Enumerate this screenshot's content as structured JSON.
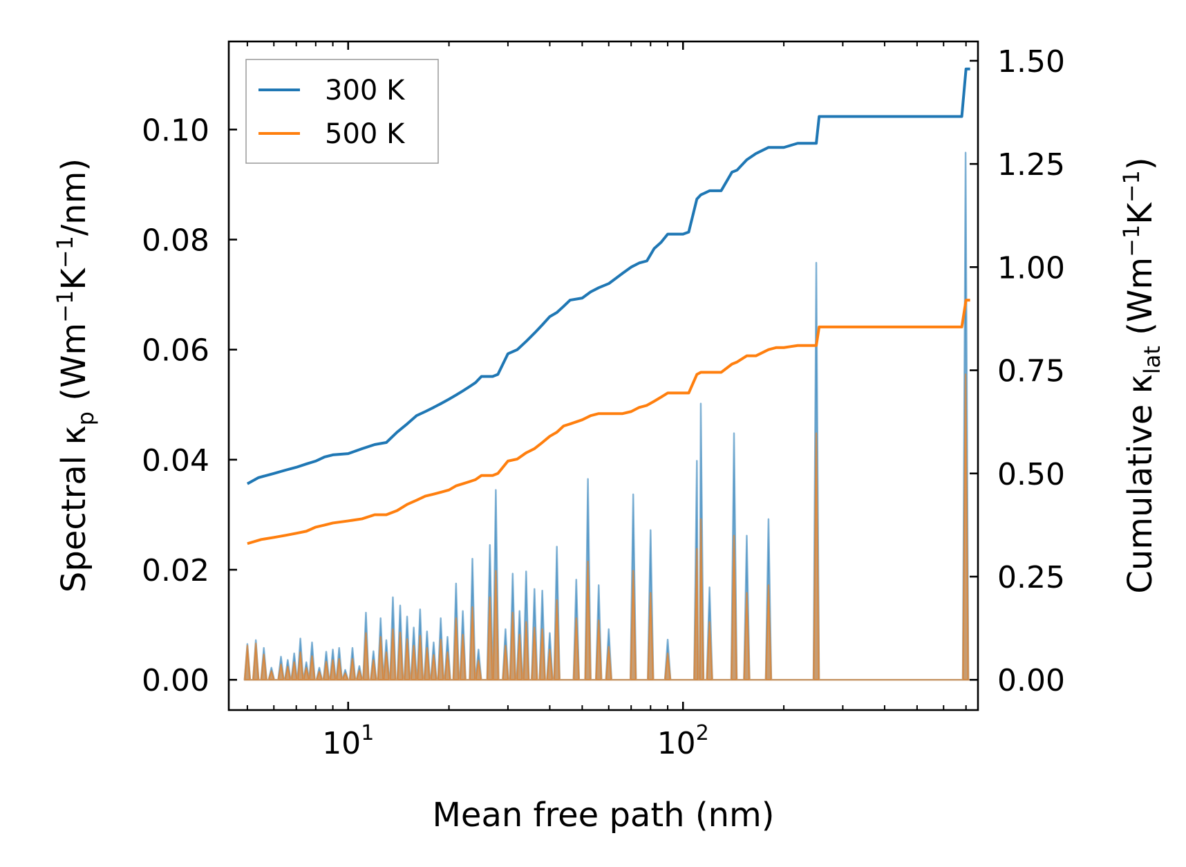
{
  "chart_data": {
    "type": "line",
    "xscale": "log",
    "xlim": [
      4.4,
      760
    ],
    "xlabel": "Mean free path (nm)",
    "x_ticks": [
      {
        "value": 10,
        "base": "10",
        "exp": "1"
      },
      {
        "value": 100,
        "base": "10",
        "exp": "2"
      }
    ],
    "left_axis": {
      "label_parts": [
        "Spectral κ",
        "p",
        " (Wm",
        "−1",
        "K",
        "−1",
        "/nm)"
      ],
      "ylim": [
        -0.0055,
        0.116
      ],
      "ticks": [
        0,
        0.02,
        0.04,
        0.06,
        0.08,
        0.1
      ],
      "tick_labels": [
        "0.00",
        "0.02",
        "0.04",
        "0.06",
        "0.08",
        "0.10"
      ]
    },
    "right_axis": {
      "label_parts": [
        "Cumulative κ",
        "lat",
        " (Wm",
        "−1",
        "K",
        "−1",
        ")"
      ],
      "ylim": [
        -0.0733,
        1.5467
      ],
      "ticks": [
        0,
        0.25,
        0.5,
        0.75,
        1.0,
        1.25,
        1.5
      ],
      "tick_labels": [
        "0.00",
        "0.25",
        "0.50",
        "0.75",
        "1.00",
        "1.25",
        "1.50"
      ]
    },
    "legend": {
      "placement": "top-left",
      "entries": [
        {
          "label": "300 K",
          "color": "#1f77b4"
        },
        {
          "label": "500 K",
          "color": "#ff7f0e"
        }
      ]
    },
    "cumulative": [
      {
        "name": "300 K",
        "color": "#1f77b4",
        "axis": "right",
        "x": [
          5.0,
          5.4,
          6.0,
          6.5,
          7.0,
          7.5,
          8.0,
          8.5,
          9.0,
          10,
          11,
          12,
          13,
          14,
          15,
          16,
          17,
          18,
          19,
          20,
          21,
          22,
          23,
          24,
          25,
          27,
          28,
          30,
          32,
          34,
          36,
          38,
          40,
          42,
          44,
          46,
          50,
          53,
          56,
          60,
          66,
          70,
          74,
          78,
          82,
          86,
          90,
          100,
          104,
          110,
          113,
          120,
          130,
          140,
          145,
          155,
          165,
          180,
          190,
          200,
          220,
          240,
          250,
          255,
          260,
          300,
          400,
          500,
          600,
          680,
          700,
          715,
          720
        ],
        "y": [
          0.475,
          0.49,
          0.5,
          0.508,
          0.515,
          0.523,
          0.53,
          0.54,
          0.545,
          0.548,
          0.56,
          0.57,
          0.575,
          0.6,
          0.62,
          0.64,
          0.65,
          0.66,
          0.67,
          0.68,
          0.69,
          0.7,
          0.71,
          0.72,
          0.735,
          0.735,
          0.74,
          0.79,
          0.8,
          0.82,
          0.84,
          0.86,
          0.88,
          0.89,
          0.905,
          0.92,
          0.925,
          0.94,
          0.95,
          0.96,
          0.985,
          1.0,
          1.01,
          1.015,
          1.045,
          1.06,
          1.08,
          1.08,
          1.085,
          1.165,
          1.175,
          1.185,
          1.185,
          1.23,
          1.235,
          1.26,
          1.275,
          1.29,
          1.29,
          1.29,
          1.3,
          1.3,
          1.3,
          1.365,
          1.365,
          1.365,
          1.365,
          1.365,
          1.365,
          1.365,
          1.48,
          1.48,
          1.48
        ]
      },
      {
        "name": "500 K",
        "color": "#ff7f0e",
        "axis": "right",
        "x": [
          5.0,
          5.5,
          6.0,
          6.5,
          7.0,
          7.5,
          8.0,
          8.5,
          9.0,
          10,
          11,
          12,
          13,
          14,
          15,
          16,
          17,
          18,
          19,
          20,
          21,
          22,
          23,
          24,
          25,
          27,
          28,
          30,
          32,
          34,
          36,
          38,
          40,
          42,
          44,
          46,
          50,
          53,
          56,
          60,
          66,
          70,
          74,
          78,
          82,
          86,
          90,
          100,
          104,
          110,
          113,
          120,
          130,
          140,
          145,
          155,
          165,
          180,
          190,
          200,
          220,
          240,
          250,
          255,
          260,
          300,
          400,
          500,
          600,
          680,
          700,
          715,
          720
        ],
        "y": [
          0.33,
          0.34,
          0.345,
          0.35,
          0.355,
          0.36,
          0.37,
          0.375,
          0.38,
          0.385,
          0.39,
          0.4,
          0.4,
          0.41,
          0.425,
          0.435,
          0.445,
          0.45,
          0.455,
          0.46,
          0.47,
          0.475,
          0.48,
          0.485,
          0.495,
          0.495,
          0.5,
          0.53,
          0.535,
          0.55,
          0.56,
          0.575,
          0.59,
          0.6,
          0.615,
          0.62,
          0.63,
          0.64,
          0.645,
          0.645,
          0.645,
          0.65,
          0.66,
          0.665,
          0.675,
          0.685,
          0.695,
          0.695,
          0.695,
          0.74,
          0.745,
          0.745,
          0.745,
          0.765,
          0.77,
          0.785,
          0.785,
          0.8,
          0.805,
          0.805,
          0.81,
          0.81,
          0.81,
          0.855,
          0.855,
          0.855,
          0.855,
          0.855,
          0.855,
          0.855,
          0.92,
          0.92,
          0.92
        ]
      }
    ],
    "spectral": [
      {
        "name": "300 K",
        "color": "#1f77b4",
        "axis": "left",
        "fill_opacity": 0.5,
        "peaks": [
          [
            5.0,
            0.0065
          ],
          [
            5.3,
            0.0072
          ],
          [
            5.6,
            0.0058
          ],
          [
            5.9,
            0.0022
          ],
          [
            6.3,
            0.0042
          ],
          [
            6.6,
            0.0036
          ],
          [
            6.9,
            0.0048
          ],
          [
            7.2,
            0.0075
          ],
          [
            7.5,
            0.0032
          ],
          [
            7.8,
            0.0068
          ],
          [
            8.2,
            0.0022
          ],
          [
            8.6,
            0.0051
          ],
          [
            9.0,
            0.0055
          ],
          [
            9.4,
            0.0058
          ],
          [
            9.8,
            0.0018
          ],
          [
            10.3,
            0.0058
          ],
          [
            10.8,
            0.0025
          ],
          [
            11.3,
            0.0122
          ],
          [
            11.9,
            0.0052
          ],
          [
            12.5,
            0.0112
          ],
          [
            13.0,
            0.0072
          ],
          [
            13.6,
            0.015
          ],
          [
            14.3,
            0.0135
          ],
          [
            15.0,
            0.0115
          ],
          [
            15.7,
            0.0095
          ],
          [
            16.4,
            0.0128
          ],
          [
            17.2,
            0.0088
          ],
          [
            18.0,
            0.0068
          ],
          [
            18.9,
            0.0112
          ],
          [
            19.8,
            0.0078
          ],
          [
            21.0,
            0.0175
          ],
          [
            22.0,
            0.0125
          ],
          [
            23.5,
            0.022
          ],
          [
            24.5,
            0.0055
          ],
          [
            26.5,
            0.0245
          ],
          [
            27.6,
            0.0345
          ],
          [
            29.5,
            0.0092
          ],
          [
            31.0,
            0.0193
          ],
          [
            32.5,
            0.0125
          ],
          [
            34.0,
            0.0197
          ],
          [
            36.0,
            0.0165
          ],
          [
            38.0,
            0.0162
          ],
          [
            40.0,
            0.0085
          ],
          [
            42.0,
            0.0242
          ],
          [
            48.0,
            0.0182
          ],
          [
            52.0,
            0.0365
          ],
          [
            56.0,
            0.0172
          ],
          [
            60.0,
            0.0092
          ],
          [
            71.0,
            0.0337
          ],
          [
            80.0,
            0.0272
          ],
          [
            90.0,
            0.0073
          ],
          [
            110.0,
            0.0398
          ],
          [
            113.0,
            0.0502
          ],
          [
            120.0,
            0.0168
          ],
          [
            142.0,
            0.0448
          ],
          [
            155.0,
            0.0262
          ],
          [
            180.0,
            0.0292
          ],
          [
            250.0,
            0.0758
          ],
          [
            698.0,
            0.0958
          ]
        ]
      },
      {
        "name": "500 K",
        "color": "#ff7f0e",
        "axis": "left",
        "fill_opacity": 0.5,
        "peaks": [
          [
            5.0,
            0.0062
          ],
          [
            5.3,
            0.0066
          ],
          [
            5.6,
            0.0046
          ],
          [
            5.9,
            0.0016
          ],
          [
            6.3,
            0.0028
          ],
          [
            6.6,
            0.0024
          ],
          [
            6.9,
            0.0032
          ],
          [
            7.2,
            0.005
          ],
          [
            7.5,
            0.0022
          ],
          [
            7.8,
            0.0043
          ],
          [
            8.2,
            0.0015
          ],
          [
            8.6,
            0.0033
          ],
          [
            9.0,
            0.0036
          ],
          [
            9.4,
            0.0038
          ],
          [
            9.8,
            0.0012
          ],
          [
            10.3,
            0.0038
          ],
          [
            10.8,
            0.0017
          ],
          [
            11.3,
            0.0085
          ],
          [
            11.9,
            0.0036
          ],
          [
            12.5,
            0.0078
          ],
          [
            13.0,
            0.005
          ],
          [
            13.6,
            0.0092
          ],
          [
            14.3,
            0.0086
          ],
          [
            15.0,
            0.0074
          ],
          [
            15.7,
            0.0062
          ],
          [
            16.4,
            0.008
          ],
          [
            17.2,
            0.0058
          ],
          [
            18.0,
            0.0045
          ],
          [
            18.9,
            0.0073
          ],
          [
            19.8,
            0.005
          ],
          [
            21.0,
            0.0112
          ],
          [
            22.0,
            0.0082
          ],
          [
            23.5,
            0.0132
          ],
          [
            24.5,
            0.0035
          ],
          [
            26.5,
            0.015
          ],
          [
            27.6,
            0.0198
          ],
          [
            29.5,
            0.0062
          ],
          [
            31.0,
            0.0122
          ],
          [
            32.5,
            0.0082
          ],
          [
            34.0,
            0.0105
          ],
          [
            36.0,
            0.0095
          ],
          [
            38.0,
            0.0092
          ],
          [
            40.0,
            0.0055
          ],
          [
            42.0,
            0.0145
          ],
          [
            48.0,
            0.0112
          ],
          [
            52.0,
            0.0215
          ],
          [
            56.0,
            0.0108
          ],
          [
            60.0,
            0.006
          ],
          [
            71.0,
            0.0198
          ],
          [
            80.0,
            0.0158
          ],
          [
            90.0,
            0.0048
          ],
          [
            110.0,
            0.0238
          ],
          [
            113.0,
            0.0292
          ],
          [
            120.0,
            0.0105
          ],
          [
            142.0,
            0.0262
          ],
          [
            155.0,
            0.0158
          ],
          [
            180.0,
            0.0172
          ],
          [
            250.0,
            0.0448
          ],
          [
            698.0,
            0.0555
          ]
        ]
      }
    ]
  }
}
